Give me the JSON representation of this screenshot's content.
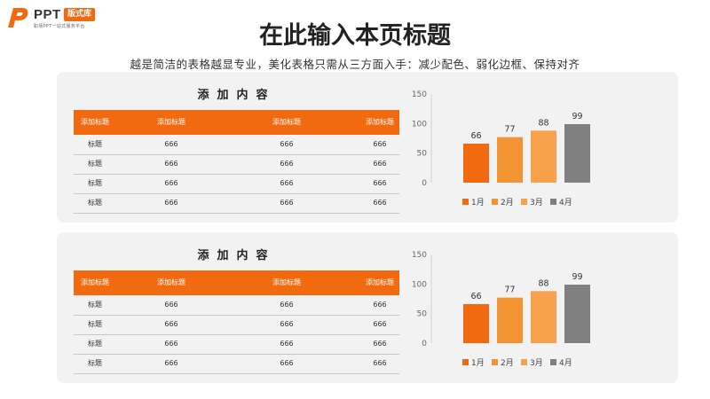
{
  "logo": {
    "ppt": "PPT",
    "badge": "版式库",
    "tagline": "职场PPT一站式服务平台"
  },
  "title": "在此输入本页标题",
  "subtitle": "越是简洁的表格越显专业，美化表格只需从三方面入手：减少配色、弱化边框、保持对齐",
  "colors": {
    "accent": "#f26a10",
    "panel_bg": "#f2f2f2"
  },
  "panels": [
    {
      "table": {
        "title": "添加内容",
        "headers": [
          "添加标题",
          "添加标题",
          "添加标题",
          "添加标题"
        ],
        "rows": [
          [
            "标题",
            "666",
            "666",
            "666"
          ],
          [
            "标题",
            "666",
            "666",
            "666"
          ],
          [
            "标题",
            "666",
            "666",
            "666"
          ],
          [
            "标题",
            "666",
            "666",
            "666"
          ]
        ]
      }
    },
    {
      "table": {
        "title": "添加内容",
        "headers": [
          "添加标题",
          "添加标题",
          "添加标题",
          "添加标题"
        ],
        "rows": [
          [
            "标题",
            "666",
            "666",
            "666"
          ],
          [
            "标题",
            "666",
            "666",
            "666"
          ],
          [
            "标题",
            "666",
            "666",
            "666"
          ],
          [
            "标题",
            "666",
            "666",
            "666"
          ]
        ]
      }
    }
  ],
  "chart_data": [
    {
      "type": "bar",
      "categories": [
        "1月",
        "2月",
        "3月",
        "4月"
      ],
      "values": [
        66,
        77,
        88,
        99
      ],
      "colors": [
        "#f26a10",
        "#f29431",
        "#f7a14d",
        "#808080"
      ],
      "yticks": [
        0,
        50,
        100,
        150
      ],
      "ylim": [
        0,
        150
      ],
      "legend": "bottom",
      "data_labels": true,
      "grid": false
    },
    {
      "type": "bar",
      "categories": [
        "1月",
        "2月",
        "3月",
        "4月"
      ],
      "values": [
        66,
        77,
        88,
        99
      ],
      "colors": [
        "#f26a10",
        "#f29431",
        "#f7a14d",
        "#808080"
      ],
      "yticks": [
        0,
        50,
        100,
        150
      ],
      "ylim": [
        0,
        150
      ],
      "legend": "bottom",
      "data_labels": true,
      "grid": false
    }
  ]
}
